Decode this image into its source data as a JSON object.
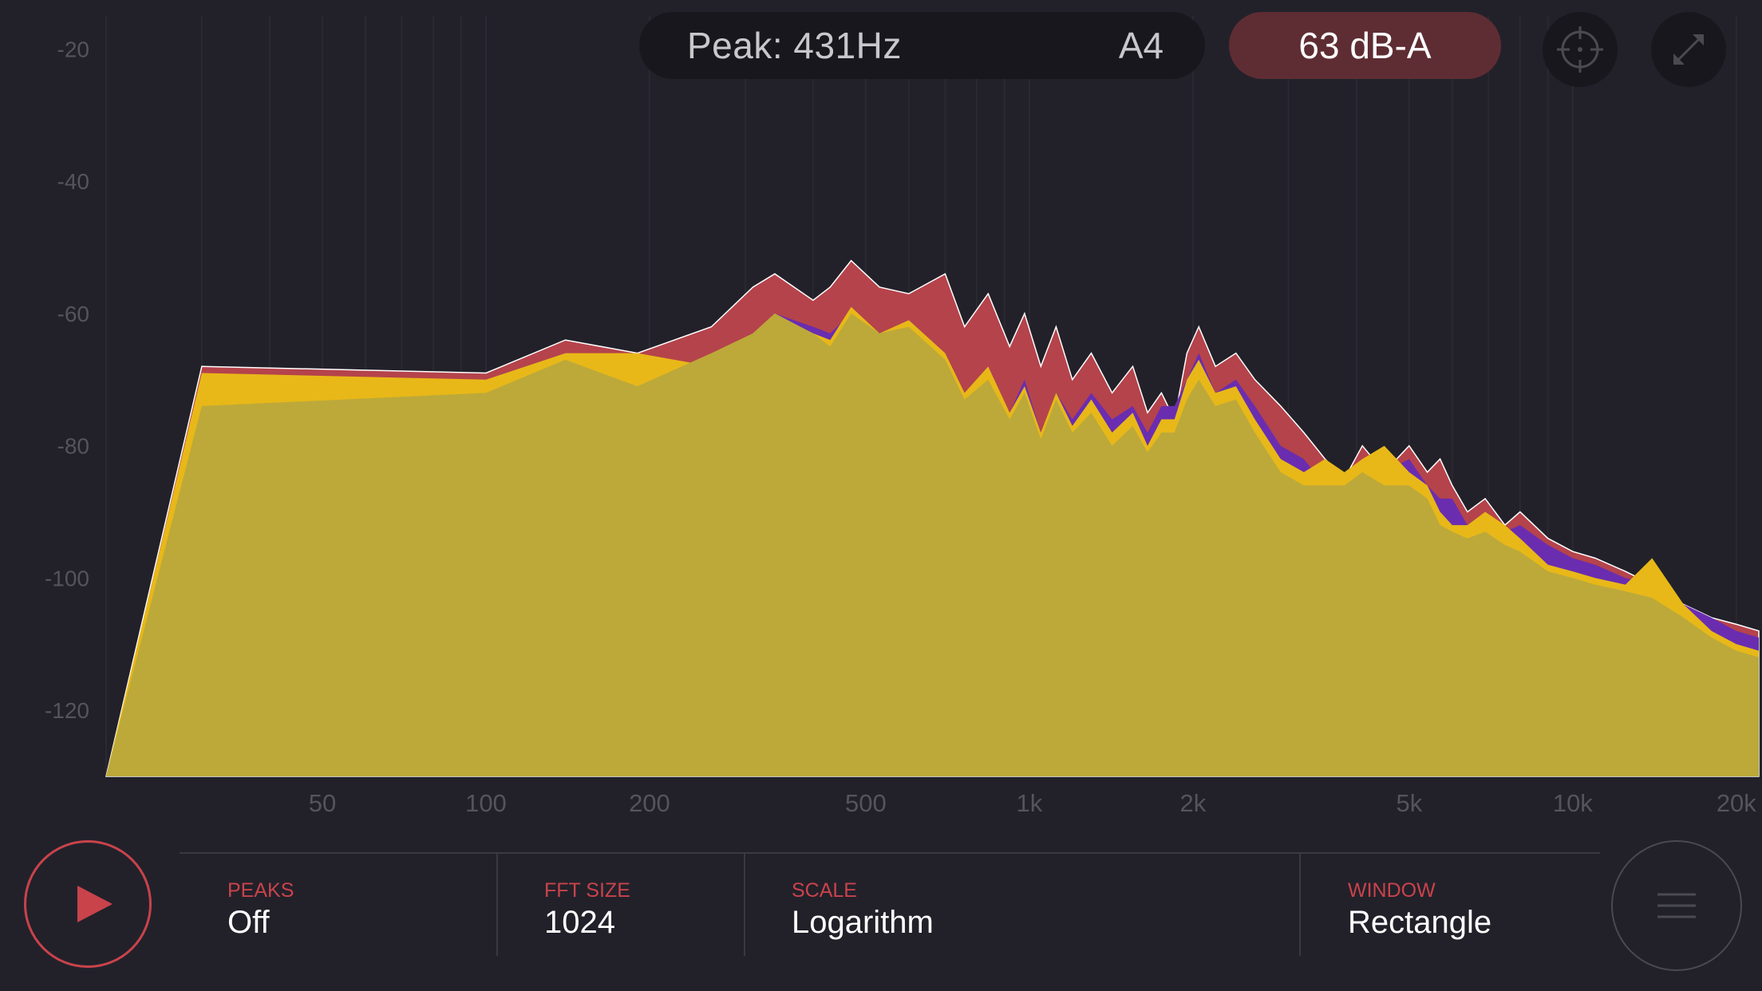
{
  "header": {
    "peak_text": "Peak: 431Hz",
    "note": "A4",
    "level": "63 dB-A",
    "crosshair_icon": "crosshair-icon",
    "expand_icon": "expand-icon"
  },
  "controls": {
    "play_icon": "play-icon",
    "menu_icon": "menu-icon",
    "peaks": {
      "label": "PEAKS",
      "value": "Off"
    },
    "fft_size": {
      "label": "FFT SIZE",
      "value": "1024"
    },
    "scale": {
      "label": "SCALE",
      "value": "Logarithm"
    },
    "window": {
      "label": "WINDOW",
      "value": "Rectangle"
    }
  },
  "colors": {
    "background": "#22212a",
    "accent_red": "#c9434b",
    "level_pill": "#5e2d33",
    "series_red": "#b5434b",
    "series_purple": "#6a2db0",
    "series_yellow": "#e8b818",
    "series_fill": "#bca93a"
  },
  "chart_data": {
    "type": "area",
    "title": "",
    "xlabel": "",
    "ylabel": "",
    "x_scale": "log",
    "xlim": [
      20,
      22000
    ],
    "ylim": [
      -130,
      -15
    ],
    "grid": true,
    "x_ticks": [
      {
        "value": 50,
        "label": "50"
      },
      {
        "value": 100,
        "label": "100"
      },
      {
        "value": 200,
        "label": "200"
      },
      {
        "value": 500,
        "label": "500"
      },
      {
        "value": 1000,
        "label": "1k"
      },
      {
        "value": 2000,
        "label": "2k"
      },
      {
        "value": 5000,
        "label": "5k"
      },
      {
        "value": 10000,
        "label": "10k"
      },
      {
        "value": 20000,
        "label": "20k"
      }
    ],
    "y_ticks": [
      {
        "value": -20,
        "label": "-20"
      },
      {
        "value": -40,
        "label": "-40"
      },
      {
        "value": -60,
        "label": "-60"
      },
      {
        "value": -80,
        "label": "-80"
      },
      {
        "value": -100,
        "label": "-100"
      },
      {
        "value": -120,
        "label": "-120"
      }
    ],
    "series": [
      {
        "color": "#b5434b",
        "x": [
          30,
          100,
          140,
          190,
          260,
          310,
          340,
          400,
          430,
          470,
          530,
          600,
          700,
          760,
          840,
          920,
          980,
          1050,
          1120,
          1200,
          1300,
          1420,
          1550,
          1650,
          1750,
          1850,
          1950,
          2050,
          2200,
          2400,
          2600,
          2900,
          3200,
          3500,
          3800,
          4100,
          4500,
          5000,
          5400,
          5700,
          6000,
          6400,
          6900,
          7500,
          8000,
          9000,
          10000,
          11000,
          12500,
          14000,
          16000,
          18000,
          20000,
          22000
        ],
        "y": [
          -68,
          -69,
          -64,
          -66,
          -62,
          -56,
          -54,
          -58,
          -56,
          -52,
          -56,
          -57,
          -54,
          -62,
          -57,
          -65,
          -60,
          -68,
          -62,
          -70,
          -66,
          -72,
          -68,
          -75,
          -72,
          -76,
          -66,
          -62,
          -68,
          -66,
          -70,
          -74,
          -78,
          -82,
          -85,
          -80,
          -84,
          -80,
          -84,
          -82,
          -86,
          -90,
          -88,
          -92,
          -90,
          -94,
          -96,
          -97,
          -99,
          -101,
          -104,
          -106,
          -107,
          -108
        ]
      },
      {
        "color": "#6a2db0",
        "x": [
          30,
          100,
          140,
          190,
          260,
          310,
          340,
          400,
          430,
          470,
          530,
          600,
          700,
          760,
          840,
          920,
          980,
          1050,
          1120,
          1200,
          1300,
          1420,
          1550,
          1650,
          1750,
          1850,
          1950,
          2050,
          2200,
          2400,
          2600,
          2900,
          3200,
          3500,
          3800,
          4100,
          4500,
          5000,
          5400,
          5700,
          6000,
          6400,
          6900,
          7500,
          8000,
          9000,
          10000,
          11000,
          12500,
          14000,
          16000,
          18000,
          20000,
          22000
        ],
        "y": [
          -70,
          -70,
          -66,
          -67,
          -68,
          -63,
          -60,
          -62,
          -63,
          -60,
          -63,
          -61,
          -66,
          -72,
          -68,
          -75,
          -70,
          -78,
          -72,
          -76,
          -72,
          -76,
          -74,
          -78,
          -74,
          -74,
          -70,
          -66,
          -72,
          -70,
          -74,
          -80,
          -82,
          -86,
          -85,
          -82,
          -84,
          -82,
          -86,
          -88,
          -88,
          -92,
          -90,
          -93,
          -92,
          -95,
          -97,
          -98,
          -100,
          -101,
          -104,
          -106,
          -108,
          -109
        ]
      },
      {
        "color": "#e8b818",
        "x": [
          30,
          100,
          140,
          190,
          260,
          310,
          340,
          400,
          430,
          470,
          530,
          600,
          700,
          760,
          840,
          920,
          980,
          1050,
          1120,
          1200,
          1300,
          1420,
          1550,
          1650,
          1750,
          1850,
          1950,
          2050,
          2200,
          2400,
          2600,
          2900,
          3200,
          3500,
          3800,
          4100,
          4500,
          5000,
          5400,
          5700,
          6000,
          6400,
          6900,
          7500,
          8000,
          9000,
          10000,
          11000,
          12500,
          14000,
          16000,
          18000,
          20000,
          22000
        ],
        "y": [
          -69,
          -70,
          -66,
          -66,
          -68,
          -63,
          -60,
          -63,
          -64,
          -59,
          -63,
          -61,
          -66,
          -72,
          -68,
          -75,
          -71,
          -78,
          -72,
          -77,
          -73,
          -78,
          -75,
          -80,
          -76,
          -76,
          -70,
          -67,
          -72,
          -71,
          -76,
          -82,
          -84,
          -82,
          -84,
          -82,
          -80,
          -84,
          -86,
          -90,
          -92,
          -92,
          -90,
          -92,
          -94,
          -98,
          -99,
          -100,
          -101,
          -97,
          -104,
          -108,
          -110,
          -111
        ]
      },
      {
        "color": "#bca93a",
        "x": [
          30,
          100,
          140,
          190,
          260,
          310,
          340,
          400,
          430,
          470,
          530,
          600,
          700,
          760,
          840,
          920,
          980,
          1050,
          1120,
          1200,
          1300,
          1420,
          1550,
          1650,
          1750,
          1850,
          1950,
          2050,
          2200,
          2400,
          2600,
          2900,
          3200,
          3500,
          3800,
          4100,
          4500,
          5000,
          5400,
          5700,
          6000,
          6400,
          6900,
          7500,
          8000,
          9000,
          10000,
          11000,
          12500,
          14000,
          16000,
          18000,
          20000,
          22000
        ],
        "y": [
          -74,
          -72,
          -67,
          -71,
          -66,
          -63,
          -60,
          -63,
          -65,
          -60,
          -63,
          -62,
          -67,
          -73,
          -70,
          -76,
          -72,
          -79,
          -73,
          -78,
          -75,
          -80,
          -77,
          -81,
          -78,
          -78,
          -73,
          -70,
          -74,
          -73,
          -78,
          -84,
          -86,
          -86,
          -86,
          -84,
          -86,
          -86,
          -88,
          -92,
          -93,
          -94,
          -93,
          -95,
          -96,
          -99,
          -100,
          -101,
          -102,
          -103,
          -106,
          -109,
          -111,
          -112
        ]
      }
    ]
  }
}
